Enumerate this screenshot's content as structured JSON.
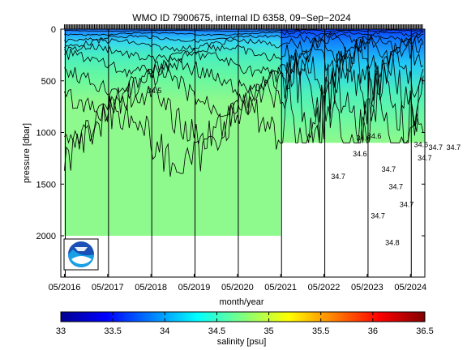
{
  "chart_data": {
    "type": "heatmap",
    "title": "WMO ID 7900675, internal ID 6358, 09−Sep−2024",
    "xlabel": "month/year",
    "ylabel": "pressure [dbar]",
    "x_tick_labels": [
      "05/2016",
      "05/2017",
      "05/2018",
      "05/2019",
      "05/2020",
      "05/2021",
      "05/2022",
      "05/2023",
      "05/2024"
    ],
    "x_range": [
      "2016-04",
      "2024-09"
    ],
    "y_range": [
      2400,
      0
    ],
    "y_reversed": true,
    "y_ticks": [
      0,
      500,
      1000,
      1500,
      2000
    ],
    "colorbar": {
      "label": "salinity [psu]",
      "range": [
        33,
        36.5
      ],
      "ticks": [
        "33",
        "33.5",
        "34",
        "34.5",
        "35",
        "35.5",
        "36",
        "36.5"
      ],
      "colormap": "jet"
    },
    "profile_max_pressure": [
      {
        "from": "2016-05",
        "to": "2021-05",
        "pressure": 2000
      },
      {
        "from": "2021-05",
        "to": "2024-09",
        "pressure": 1100
      }
    ],
    "contour_labels": [
      {
        "date": "2018-04",
        "pressure": 620,
        "text": "34.5"
      },
      {
        "date": "2022-07",
        "pressure": 1450,
        "text": "34.7"
      },
      {
        "date": "2023-01",
        "pressure": 1230,
        "text": "34.6"
      },
      {
        "date": "2023-02",
        "pressure": 1080,
        "text": "34.6"
      },
      {
        "date": "2023-05",
        "pressure": 1060,
        "text": "34.6"
      },
      {
        "date": "2023-09",
        "pressure": 1380,
        "text": "34.7"
      },
      {
        "date": "2023-11",
        "pressure": 1550,
        "text": "34.7"
      },
      {
        "date": "2023-06",
        "pressure": 1830,
        "text": "34.7"
      },
      {
        "date": "2024-02",
        "pressure": 1720,
        "text": "34.7"
      },
      {
        "date": "2024-06",
        "pressure": 1140,
        "text": "34.6"
      },
      {
        "date": "2024-07",
        "pressure": 1270,
        "text": "34.7"
      },
      {
        "date": "2024-10",
        "pressure": 1170,
        "text": "34.7"
      },
      {
        "date": "2023-10",
        "pressure": 2090,
        "text": "34.8"
      },
      {
        "date": "2025-03",
        "pressure": 1170,
        "text": "34.7"
      }
    ],
    "logo": "NOAA"
  }
}
